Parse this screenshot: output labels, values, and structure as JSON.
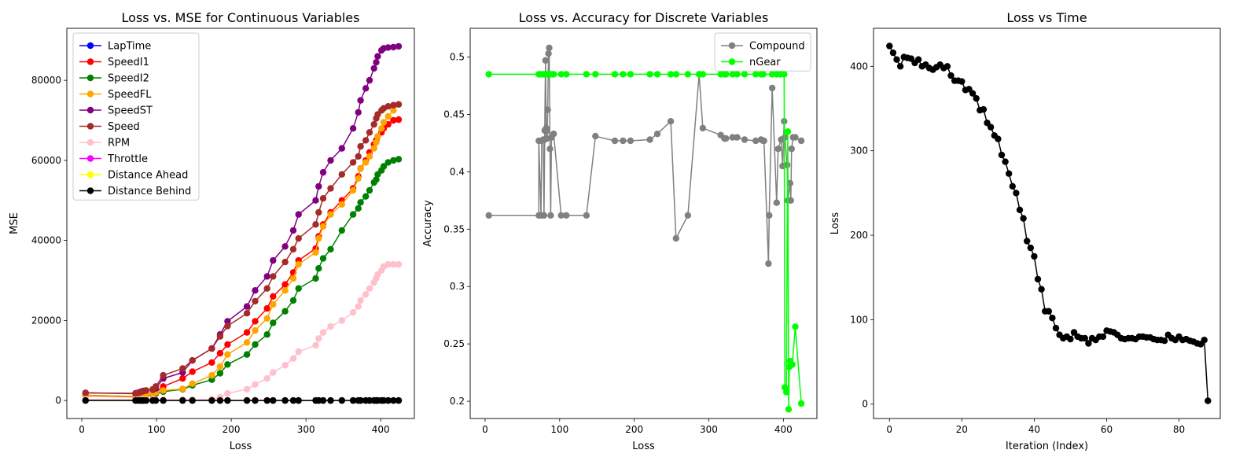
{
  "chart_data": [
    {
      "type": "line",
      "title": "Loss vs. MSE for Continuous Variables",
      "xlabel": "Loss",
      "ylabel": "MSE",
      "xlim": [
        -20,
        445
      ],
      "ylim": [
        -4500,
        93000
      ],
      "xticks": [
        0,
        100,
        200,
        300,
        400
      ],
      "yticks": [
        0,
        20000,
        40000,
        60000,
        80000
      ],
      "legend_position": "top-left",
      "x": [
        5,
        72,
        76,
        79,
        82,
        86,
        95,
        99,
        109,
        135,
        148,
        174,
        185,
        195,
        221,
        232,
        248,
        256,
        272,
        283,
        290,
        313,
        317,
        323,
        333,
        348,
        363,
        370,
        373,
        380,
        385,
        391,
        394,
        396,
        401,
        404,
        410,
        417,
        424
      ],
      "series": [
        {
          "name": "LapTime",
          "color": "#0000ff",
          "values": [
            0,
            0,
            0,
            0,
            0,
            0,
            0,
            0,
            0,
            0,
            0,
            0,
            0,
            0,
            0,
            0,
            0,
            0,
            0,
            0,
            0,
            0,
            0,
            0,
            0,
            0,
            0,
            0,
            0,
            0,
            0,
            0,
            0,
            0,
            0,
            0,
            0,
            0,
            0
          ]
        },
        {
          "name": "SpeedI1",
          "color": "#ff0000",
          "values": [
            1200,
            900,
            1000,
            1100,
            1300,
            1500,
            1700,
            2000,
            3500,
            5500,
            7200,
            9500,
            11800,
            14000,
            17000,
            19800,
            23000,
            26000,
            29000,
            32000,
            35000,
            38000,
            41000,
            44000,
            47000,
            50000,
            53000,
            56000,
            58000,
            60000,
            62000,
            64000,
            65000,
            66000,
            67000,
            68000,
            69000,
            70000,
            70200
          ]
        },
        {
          "name": "SpeedI2",
          "color": "#008000",
          "values": [
            1300,
            1000,
            1100,
            1100,
            1200,
            1300,
            1500,
            1700,
            2200,
            2800,
            3800,
            5200,
            6800,
            9000,
            11500,
            14000,
            16500,
            19400,
            22300,
            25000,
            28000,
            30500,
            33000,
            35500,
            37800,
            42500,
            46500,
            48000,
            49500,
            51000,
            52500,
            54500,
            55200,
            56500,
            57500,
            58500,
            59500,
            60000,
            60300
          ]
        },
        {
          "name": "SpeedFL",
          "color": "#ffa500",
          "values": [
            1300,
            1000,
            1100,
            1200,
            1300,
            1400,
            1700,
            2000,
            2500,
            2900,
            4200,
            6300,
            8500,
            11500,
            14500,
            17500,
            20500,
            24000,
            27500,
            30500,
            34000,
            37000,
            40500,
            43500,
            46500,
            49000,
            52500,
            55500,
            58000,
            59500,
            61000,
            63000,
            64500,
            66000,
            68000,
            69500,
            71000,
            72500,
            74000
          ]
        },
        {
          "name": "SpeedST",
          "color": "#800080",
          "values": [
            1900,
            1800,
            2000,
            2200,
            2400,
            2500,
            2700,
            3000,
            5500,
            7000,
            10000,
            13000,
            16500,
            19800,
            23500,
            27500,
            31000,
            35000,
            38500,
            42500,
            46500,
            50000,
            53500,
            57000,
            60000,
            63000,
            68000,
            72000,
            75000,
            78000,
            80000,
            83000,
            84500,
            86000,
            87500,
            88000,
            88200,
            88300,
            88500
          ]
        },
        {
          "name": "Speed",
          "color": "#a52a2a",
          "values": [
            1900,
            1700,
            1900,
            2100,
            2300,
            2500,
            2800,
            3500,
            6300,
            8000,
            10000,
            13000,
            16000,
            18600,
            21800,
            24800,
            28000,
            31000,
            34600,
            37800,
            40500,
            44000,
            47000,
            50500,
            53000,
            56500,
            59500,
            61000,
            63500,
            65000,
            67000,
            69000,
            70500,
            71500,
            72500,
            73000,
            73500,
            73800,
            74000
          ]
        },
        {
          "name": "RPM",
          "color": "#ffc0cb",
          "values": [
            300,
            200,
            200,
            200,
            200,
            200,
            200,
            200,
            200,
            200,
            200,
            300,
            800,
            1800,
            2800,
            4000,
            5500,
            7000,
            8800,
            10500,
            12200,
            13800,
            15500,
            17000,
            18500,
            20000,
            22000,
            23500,
            25000,
            26500,
            28000,
            29500,
            30500,
            31500,
            32500,
            33500,
            34000,
            34000,
            34000
          ]
        },
        {
          "name": "Throttle",
          "color": "#ff00ff",
          "values": [
            0,
            0,
            0,
            0,
            0,
            0,
            0,
            0,
            0,
            0,
            0,
            0,
            0,
            0,
            0,
            0,
            0,
            0,
            0,
            0,
            0,
            0,
            0,
            0,
            0,
            0,
            0,
            0,
            0,
            0,
            0,
            0,
            0,
            0,
            0,
            0,
            0,
            0,
            0
          ]
        },
        {
          "name": "Distance Ahead",
          "color": "#ffff00",
          "values": [
            0,
            0,
            0,
            0,
            0,
            0,
            0,
            0,
            0,
            0,
            0,
            0,
            0,
            0,
            0,
            0,
            0,
            0,
            0,
            0,
            0,
            0,
            0,
            0,
            0,
            0,
            0,
            0,
            0,
            0,
            0,
            0,
            0,
            0,
            0,
            0,
            0,
            0,
            0
          ]
        },
        {
          "name": "Distance Behind",
          "color": "#000000",
          "values": [
            0,
            0,
            0,
            0,
            0,
            0,
            0,
            0,
            0,
            0,
            0,
            0,
            0,
            0,
            0,
            0,
            0,
            0,
            0,
            0,
            0,
            0,
            0,
            0,
            0,
            0,
            0,
            0,
            0,
            0,
            0,
            0,
            0,
            0,
            0,
            0,
            0,
            0,
            0
          ]
        }
      ]
    },
    {
      "type": "line",
      "title": "Loss vs. Accuracy for Discrete Variables",
      "xlabel": "Loss",
      "ylabel": "Accuracy",
      "xlim": [
        -20,
        445
      ],
      "ylim": [
        0.185,
        0.525
      ],
      "xticks": [
        0,
        100,
        200,
        300,
        400
      ],
      "yticks": [
        0.2,
        0.25,
        0.3,
        0.35,
        0.4,
        0.45,
        0.5
      ],
      "legend_position": "top-right",
      "series": [
        {
          "name": "Compound",
          "color": "#808080",
          "x": [
            5,
            72,
            72,
            75,
            76,
            78,
            79,
            80,
            80,
            81,
            82,
            82,
            83,
            84,
            85,
            86,
            87,
            88,
            89,
            92,
            102,
            109,
            136,
            148,
            174,
            185,
            195,
            221,
            231,
            249,
            256,
            272,
            287,
            292,
            316,
            321,
            323,
            332,
            338,
            348,
            363,
            370,
            373,
            374,
            380,
            381,
            385,
            391,
            393,
            397,
            399,
            401,
            402,
            405,
            406,
            409,
            410,
            411,
            413,
            416,
            424
          ],
          "values": [
            0.362,
            0.362,
            0.427,
            0.362,
            0.427,
            0.428,
            0.362,
            0.428,
            0.436,
            0.497,
            0.438,
            0.435,
            0.429,
            0.454,
            0.503,
            0.508,
            0.42,
            0.362,
            0.43,
            0.433,
            0.362,
            0.362,
            0.362,
            0.431,
            0.427,
            0.427,
            0.427,
            0.428,
            0.433,
            0.444,
            0.342,
            0.362,
            0.485,
            0.438,
            0.432,
            0.429,
            0.429,
            0.43,
            0.43,
            0.428,
            0.427,
            0.428,
            0.427,
            0.427,
            0.32,
            0.362,
            0.473,
            0.373,
            0.42,
            0.428,
            0.405,
            0.444,
            0.43,
            0.406,
            0.375,
            0.39,
            0.375,
            0.42,
            0.43,
            0.43,
            0.427
          ]
        },
        {
          "name": "nGear",
          "color": "#00ff00",
          "x": [
            5,
            72,
            75,
            78,
            80,
            82,
            84,
            86,
            88,
            90,
            92,
            102,
            109,
            136,
            148,
            174,
            185,
            195,
            221,
            231,
            249,
            256,
            272,
            287,
            292,
            316,
            321,
            323,
            332,
            338,
            348,
            363,
            370,
            373,
            385,
            391,
            396,
            401,
            402,
            404,
            406,
            407,
            408,
            409,
            410,
            412,
            416,
            424
          ],
          "values": [
            0.485,
            0.485,
            0.485,
            0.485,
            0.485,
            0.485,
            0.485,
            0.485,
            0.485,
            0.485,
            0.485,
            0.485,
            0.485,
            0.485,
            0.485,
            0.485,
            0.485,
            0.485,
            0.485,
            0.485,
            0.485,
            0.485,
            0.485,
            0.485,
            0.485,
            0.485,
            0.485,
            0.485,
            0.485,
            0.485,
            0.485,
            0.485,
            0.485,
            0.485,
            0.485,
            0.485,
            0.485,
            0.485,
            0.212,
            0.208,
            0.435,
            0.193,
            0.23,
            0.235,
            0.232,
            0.232,
            0.265,
            0.198
          ]
        }
      ]
    },
    {
      "type": "line",
      "title": "Loss vs Time",
      "xlabel": "Iteration (Index)",
      "ylabel": "Loss",
      "xlim": [
        -4.4,
        91.4
      ],
      "ylim": [
        -17,
        445
      ],
      "xticks": [
        0,
        20,
        40,
        60,
        80
      ],
      "yticks": [
        0,
        100,
        200,
        300,
        400
      ],
      "series": [
        {
          "name": "",
          "color": "#000000",
          "values": [
            424,
            416,
            408,
            400,
            411,
            410,
            409,
            404,
            408,
            400,
            402,
            398,
            396,
            399,
            402,
            398,
            400,
            389,
            383,
            383,
            382,
            372,
            373,
            368,
            362,
            348,
            349,
            333,
            328,
            318,
            314,
            295,
            287,
            273,
            258,
            250,
            230,
            220,
            193,
            185,
            175,
            148,
            136,
            110,
            110,
            102,
            90,
            82,
            78,
            80,
            77,
            85,
            80,
            78,
            78,
            72,
            78,
            76,
            80,
            80,
            87,
            86,
            85,
            82,
            78,
            77,
            78,
            78,
            77,
            80,
            80,
            79,
            79,
            77,
            76,
            76,
            75,
            82,
            78,
            76,
            80,
            76,
            77,
            75,
            74,
            72,
            71,
            76,
            4
          ]
        }
      ]
    }
  ]
}
